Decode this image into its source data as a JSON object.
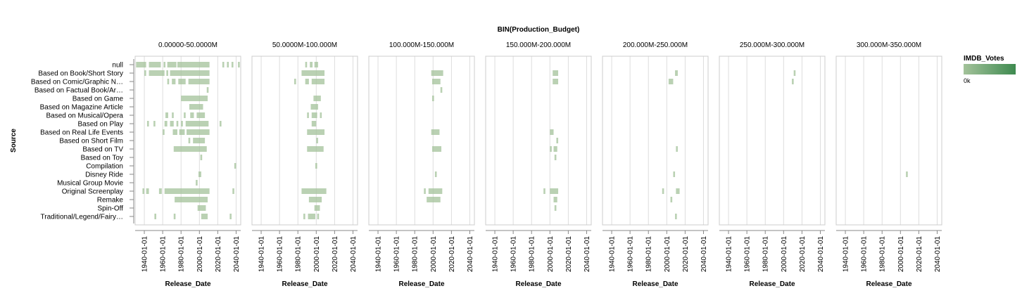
{
  "chart_data": {
    "type": "heatmap",
    "title": "BIN(Production_Budget)",
    "xlabel": "Release_Date",
    "ylabel": "Source",
    "x_ticks": [
      "1940-01-01",
      "1960-01-01",
      "1980-01-01",
      "2000-01-01",
      "2020-01-01",
      "2040-01-01"
    ],
    "x_domain": [
      "1930-01-01",
      "2045-01-01"
    ],
    "facets": [
      "0.00000-50.0000M",
      "50.0000M-100.000M",
      "100.000M-150.000M",
      "150.000M-200.000M",
      "200.000M-250.000M",
      "250.000M-300.000M",
      "300.000M-350.000M"
    ],
    "categories": [
      "null",
      "Based on Book/Short Story",
      "Based on Comic/Graphic N…",
      "Based on Factual Book/Ar…",
      "Based on Game",
      "Based on Magazine Article",
      "Based on Musical/Opera",
      "Based on Play",
      "Based on Real Life Events",
      "Based on Short Film",
      "Based on TV",
      "Based on Toy",
      "Compilation",
      "Disney Ride",
      "Musical Group Movie",
      "Original Screenplay",
      "Remake",
      "Spin-Off",
      "Traditional/Legend/Fairy…"
    ],
    "legend": {
      "title": "IMDB_Votes",
      "min_label": "0k",
      "color_low": "#a3c29a",
      "color_high": "#3e8a50",
      "position": "right"
    },
    "grid": true,
    "cells": [
      [
        [
          0,
          1931,
          1942
        ],
        [
          0,
          1945,
          1958
        ],
        [
          0,
          1961,
          1963
        ],
        [
          0,
          1965,
          1975
        ],
        [
          0,
          1976,
          2011
        ],
        [
          0,
          2025,
          2027
        ],
        [
          0,
          2030,
          2032
        ],
        [
          0,
          2035,
          2037
        ],
        [
          0,
          2042,
          2044
        ],
        [
          1,
          1940,
          1942
        ],
        [
          1,
          1945,
          1962
        ],
        [
          1,
          1964,
          1966
        ],
        [
          1,
          1968,
          2011
        ],
        [
          2,
          1965,
          1967
        ],
        [
          2,
          1970,
          1974
        ],
        [
          2,
          1977,
          1985
        ],
        [
          2,
          1988,
          2011
        ],
        [
          3,
          2008,
          2010
        ],
        [
          4,
          1980,
          2009
        ],
        [
          5,
          1989,
          2004
        ],
        [
          6,
          1963,
          1966
        ],
        [
          6,
          1970,
          1972
        ],
        [
          6,
          1983,
          1985
        ],
        [
          6,
          1990,
          1994
        ],
        [
          6,
          1997,
          2006
        ],
        [
          7,
          1943,
          1945
        ],
        [
          7,
          1950,
          1952
        ],
        [
          7,
          1962,
          1965
        ],
        [
          7,
          1968,
          1972
        ],
        [
          7,
          1975,
          1977
        ],
        [
          7,
          1980,
          1982
        ],
        [
          7,
          1985,
          2010
        ],
        [
          7,
          2022,
          2024
        ],
        [
          8,
          1960,
          1962
        ],
        [
          8,
          1971,
          1976
        ],
        [
          8,
          1978,
          1984
        ],
        [
          8,
          1986,
          2011
        ],
        [
          9,
          1988,
          1990
        ],
        [
          9,
          1993,
          2006
        ],
        [
          10,
          1972,
          2008
        ],
        [
          11,
          2001,
          2003
        ],
        [
          12,
          2038,
          2040
        ],
        [
          13,
          1999,
          2002
        ],
        [
          14,
          1996,
          1998
        ],
        [
          15,
          1938,
          1940
        ],
        [
          15,
          1942,
          1945
        ],
        [
          15,
          1956,
          1959
        ],
        [
          15,
          1962,
          2011
        ],
        [
          15,
          2036,
          2038
        ],
        [
          16,
          1973,
          2009
        ],
        [
          17,
          1998,
          2007
        ],
        [
          18,
          1951,
          1953
        ],
        [
          18,
          1972,
          1974
        ],
        [
          18,
          2002,
          2009
        ],
        [
          18,
          2033,
          2035
        ]
      ],
      [
        [
          0,
          1988,
          1990
        ],
        [
          0,
          1993,
          1996
        ],
        [
          0,
          1998,
          2002
        ],
        [
          1,
          1984,
          2009
        ],
        [
          2,
          1976,
          1978
        ],
        [
          2,
          1988,
          1992
        ],
        [
          2,
          1995,
          2009
        ],
        [
          4,
          1997,
          2005
        ],
        [
          5,
          1994,
          2002
        ],
        [
          6,
          1990,
          1992
        ],
        [
          6,
          1995,
          2001
        ],
        [
          6,
          2004,
          2006
        ],
        [
          7,
          1995,
          2000
        ],
        [
          8,
          1990,
          2009
        ],
        [
          9,
          2000,
          2002
        ],
        [
          10,
          1990,
          2008
        ],
        [
          12,
          1999,
          2001
        ],
        [
          15,
          1984,
          2011
        ],
        [
          16,
          1992,
          2006
        ],
        [
          17,
          1998,
          2004
        ],
        [
          18,
          1986,
          1988
        ],
        [
          18,
          1991,
          1999
        ],
        [
          18,
          2001,
          2003
        ]
      ],
      [
        [
          1,
          1998,
          2011
        ],
        [
          2,
          1999,
          2008
        ],
        [
          3,
          2008,
          2010
        ],
        [
          4,
          1999,
          2001
        ],
        [
          8,
          1998,
          2007
        ],
        [
          10,
          1999,
          2009
        ],
        [
          13,
          2002,
          2004
        ],
        [
          15,
          1990,
          1992
        ],
        [
          15,
          1995,
          2010
        ],
        [
          16,
          1993,
          2008
        ]
      ],
      [
        [
          1,
          2003,
          2009
        ],
        [
          2,
          2003,
          2009
        ],
        [
          8,
          2000,
          2004
        ],
        [
          9,
          2007,
          2009
        ],
        [
          10,
          2000,
          2002
        ],
        [
          10,
          2004,
          2008
        ],
        [
          11,
          2005,
          2007
        ],
        [
          15,
          1993,
          1995
        ],
        [
          15,
          2000,
          2009
        ],
        [
          16,
          2004,
          2008
        ],
        [
          17,
          2005,
          2007
        ]
      ],
      [
        [
          1,
          2009,
          2012
        ],
        [
          2,
          2002,
          2007
        ],
        [
          10,
          2010,
          2012
        ],
        [
          13,
          2007,
          2009
        ],
        [
          15,
          1995,
          1997
        ],
        [
          15,
          2010,
          2014
        ],
        [
          16,
          2004,
          2006
        ],
        [
          18,
          2009,
          2011
        ]
      ],
      [
        [
          1,
          2011,
          2013
        ],
        [
          2,
          2009,
          2011
        ]
      ],
      [
        [
          13,
          2006,
          2008
        ]
      ]
    ]
  }
}
